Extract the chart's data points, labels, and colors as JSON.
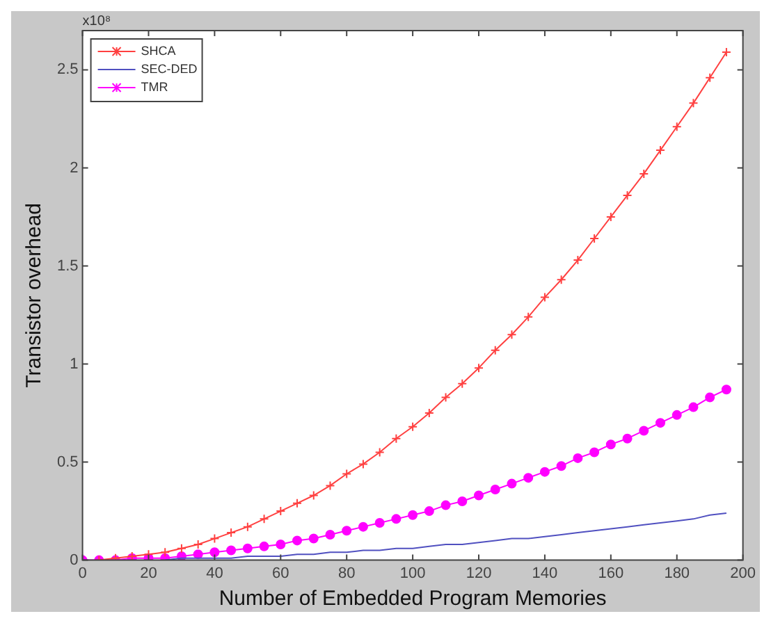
{
  "chart_data": {
    "type": "line",
    "xlabel": "Number of Embedded Program Memories",
    "ylabel": "Transistor overhead",
    "annotations": [
      "x10⁸"
    ],
    "x": [
      0,
      5,
      10,
      15,
      20,
      25,
      30,
      35,
      40,
      45,
      50,
      55,
      60,
      65,
      70,
      75,
      80,
      85,
      90,
      95,
      100,
      105,
      110,
      115,
      120,
      125,
      130,
      135,
      140,
      145,
      150,
      155,
      160,
      165,
      170,
      175,
      180,
      185,
      190,
      195
    ],
    "series": [
      {
        "name": "SHCA",
        "color": "#ff4040",
        "marker": "cross",
        "values": [
          null,
          0.0,
          0.01,
          0.02,
          0.03,
          0.04,
          0.06,
          0.08,
          0.11,
          0.14,
          0.17,
          0.21,
          0.25,
          0.29,
          0.33,
          0.38,
          0.44,
          0.49,
          0.55,
          0.62,
          0.68,
          0.75,
          0.83,
          0.9,
          0.98,
          1.07,
          1.15,
          1.24,
          1.34,
          1.43,
          1.53,
          1.64,
          1.75,
          1.86,
          1.97,
          2.09,
          2.21,
          2.33,
          2.46,
          2.59
        ]
      },
      {
        "name": "SEC-DED",
        "color": "#5050c0",
        "marker": "none",
        "values": [
          null,
          null,
          null,
          null,
          null,
          0,
          0.01,
          0.01,
          0.01,
          0.01,
          0.02,
          0.02,
          0.02,
          0.03,
          0.03,
          0.04,
          0.04,
          0.05,
          0.05,
          0.06,
          0.06,
          0.07,
          0.08,
          0.08,
          0.09,
          0.1,
          0.11,
          0.11,
          0.12,
          0.13,
          0.14,
          0.15,
          0.16,
          0.17,
          0.18,
          0.19,
          0.2,
          0.21,
          0.23,
          0.24
        ]
      },
      {
        "name": "TMR",
        "color": "#ff00ff",
        "marker": "circle",
        "values": [
          0,
          0.0,
          0.0,
          0.01,
          0.01,
          0.01,
          0.02,
          0.03,
          0.04,
          0.05,
          0.06,
          0.07,
          0.08,
          0.1,
          0.11,
          0.13,
          0.15,
          0.17,
          0.19,
          0.21,
          0.23,
          0.25,
          0.28,
          0.3,
          0.33,
          0.36,
          0.39,
          0.42,
          0.45,
          0.48,
          0.52,
          0.55,
          0.59,
          0.62,
          0.66,
          0.7,
          0.74,
          0.78,
          0.83,
          0.87
        ]
      }
    ],
    "xlim": [
      0,
      200
    ],
    "xticks": [
      0,
      20,
      40,
      60,
      80,
      100,
      120,
      140,
      160,
      180,
      200
    ],
    "ylim": [
      0,
      2.7
    ],
    "yticks": [
      0,
      0.5,
      1,
      1.5,
      2,
      2.5
    ],
    "grid": false,
    "legend": "top left"
  }
}
